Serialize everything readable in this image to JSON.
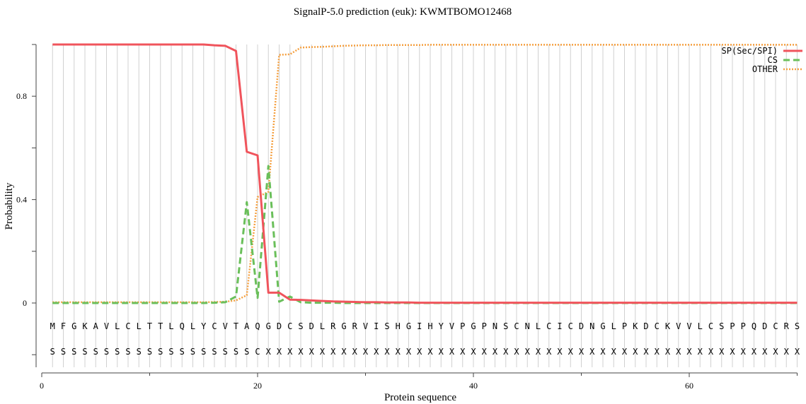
{
  "chart_data": {
    "type": "line",
    "title": "SignalP-5.0 prediction (euk):  KWMTBOMO12468",
    "xlabel": "Protein sequence",
    "ylabel": "Probability",
    "xlim": [
      0,
      70
    ],
    "ylim": [
      -0.25,
      1.0
    ],
    "x_ticks": [
      0,
      20,
      40,
      60
    ],
    "y_ticks": [
      "0",
      "0.4",
      "0.8"
    ],
    "grid": "vertical lines at each residue",
    "legend_placement": "top-right",
    "sequence": [
      "M",
      "F",
      "G",
      "K",
      "A",
      "V",
      "L",
      "C",
      "L",
      "T",
      "T",
      "L",
      "Q",
      "L",
      "Y",
      "C",
      "V",
      "T",
      "A",
      "Q",
      "G",
      "D",
      "C",
      "S",
      "D",
      "L",
      "R",
      "G",
      "R",
      "V",
      "I",
      "S",
      "H",
      "G",
      "I",
      "H",
      "Y",
      "V",
      "P",
      "G",
      "P",
      "N",
      "S",
      "C",
      "N",
      "L",
      "C",
      "I",
      "C",
      "D",
      "N",
      "G",
      "L",
      "P",
      "K",
      "D",
      "C",
      "K",
      "V",
      "V",
      "L",
      "C",
      "S",
      "P",
      "P",
      "Q",
      "D",
      "C",
      "R",
      "S"
    ],
    "labels": [
      "S",
      "S",
      "S",
      "S",
      "S",
      "S",
      "S",
      "S",
      "S",
      "S",
      "S",
      "S",
      "S",
      "S",
      "S",
      "S",
      "S",
      "S",
      "S",
      "C",
      "X",
      "X",
      "X",
      "X",
      "X",
      "X",
      "X",
      "X",
      "X",
      "X",
      "X",
      "X",
      "X",
      "X",
      "X",
      "X",
      "X",
      "X",
      "X",
      "X",
      "X",
      "X",
      "X",
      "X",
      "X",
      "X",
      "X",
      "X",
      "X",
      "X",
      "X",
      "X",
      "X",
      "X",
      "X",
      "X",
      "X",
      "X",
      "X",
      "X",
      "X",
      "X",
      "X",
      "X",
      "X",
      "X",
      "X",
      "X",
      "X",
      "X"
    ],
    "series": [
      {
        "name": "SP(Sec/SPI)",
        "color": "#f0545c",
        "style": "solid",
        "values": [
          1.0,
          1.0,
          1.0,
          1.0,
          1.0,
          1.0,
          1.0,
          1.0,
          1.0,
          1.0,
          1.0,
          1.0,
          1.0,
          1.0,
          1.0,
          0.997,
          0.995,
          0.975,
          0.585,
          0.571,
          0.04,
          0.04,
          0.013,
          0.012,
          0.01,
          0.008,
          0.006,
          0.005,
          0.004,
          0.003,
          0.003,
          0.002,
          0.002,
          0.002,
          0.001,
          0.001,
          0.001,
          0.001,
          0.001,
          0.001,
          0.001,
          0.001,
          0.001,
          0.001,
          0.001,
          0.001,
          0.001,
          0.001,
          0.001,
          0.001,
          0.001,
          0.001,
          0.001,
          0.001,
          0.001,
          0.001,
          0.001,
          0.001,
          0.001,
          0.001,
          0.001,
          0.001,
          0.001,
          0.001,
          0.001,
          0.001,
          0.001,
          0.001,
          0.001,
          0.001
        ]
      },
      {
        "name": "CS",
        "color": "#6abf5a",
        "style": "dashed",
        "values": [
          0,
          0,
          0,
          0,
          0,
          0,
          0,
          0,
          0,
          0,
          0,
          0,
          0,
          0,
          0,
          0.001,
          0.003,
          0.025,
          0.39,
          0.02,
          0.53,
          0.005,
          0.025,
          0.003,
          0.001,
          0.001,
          0.001,
          0,
          0,
          0,
          0,
          0,
          0,
          0,
          0,
          0,
          0,
          0,
          0,
          0,
          0,
          0,
          0,
          0,
          0,
          0,
          0,
          0,
          0,
          0,
          0,
          0,
          0,
          0,
          0,
          0,
          0,
          0,
          0,
          0,
          0,
          0,
          0,
          0,
          0,
          0,
          0,
          0,
          0,
          0
        ]
      },
      {
        "name": "OTHER",
        "color": "#f5a040",
        "style": "dotted",
        "values": [
          0.003,
          0.003,
          0.003,
          0.003,
          0.003,
          0.003,
          0.003,
          0.003,
          0.003,
          0.003,
          0.003,
          0.003,
          0.003,
          0.003,
          0.003,
          0.004,
          0.005,
          0.01,
          0.03,
          0.41,
          0.43,
          0.96,
          0.962,
          0.988,
          0.99,
          0.991,
          0.993,
          0.995,
          0.996,
          0.997,
          0.997,
          0.998,
          0.998,
          0.998,
          0.998,
          0.999,
          0.999,
          0.999,
          0.999,
          0.999,
          0.999,
          0.999,
          0.999,
          0.999,
          0.999,
          0.999,
          0.999,
          0.999,
          0.999,
          0.999,
          0.999,
          0.999,
          0.999,
          0.999,
          0.999,
          0.999,
          0.999,
          0.999,
          0.999,
          0.999,
          0.999,
          0.999,
          0.999,
          0.999,
          0.999,
          0.999,
          0.999,
          0.999,
          0.999,
          0.999
        ]
      }
    ]
  }
}
